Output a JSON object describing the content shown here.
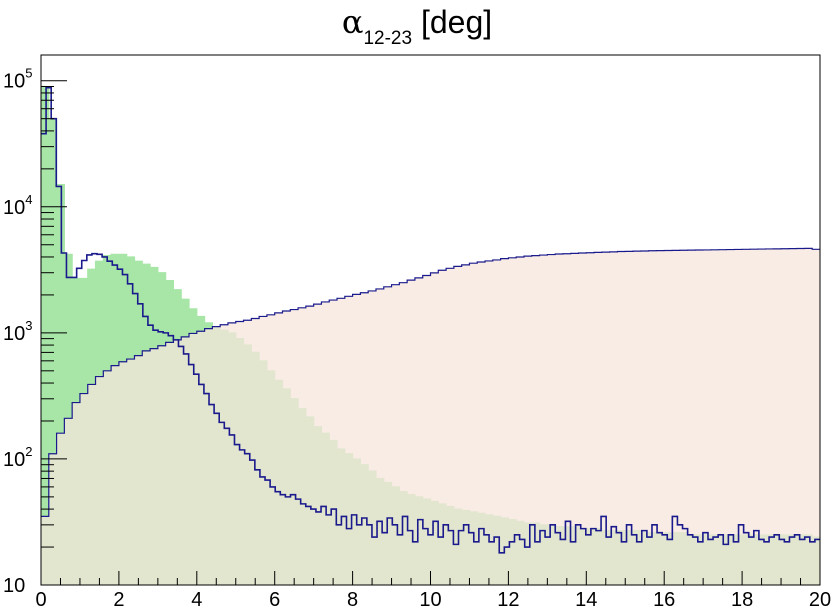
{
  "chart_data": {
    "type": "area",
    "title": {
      "symbol": "α",
      "subscript": "12-23",
      "unit": "[deg]"
    },
    "x_axis": {
      "min": 0,
      "max": 20,
      "tick_labels": [
        "0",
        "2",
        "4",
        "6",
        "8",
        "10",
        "12",
        "14",
        "16",
        "18",
        "20"
      ]
    },
    "y_axis": {
      "scale": "log",
      "min": 10,
      "max": 160000,
      "tick_labels": [
        {
          "value": 10,
          "base": "10",
          "exp": ""
        },
        {
          "value": 100,
          "base": "10",
          "exp": "2"
        },
        {
          "value": 1000,
          "base": "10",
          "exp": "3"
        },
        {
          "value": 10000,
          "base": "10",
          "exp": "4"
        },
        {
          "value": 100000,
          "base": "10",
          "exp": "5"
        }
      ]
    },
    "bin_width": 0.2,
    "grid": false,
    "legend": "none",
    "series": [
      {
        "fill": "#a8e6a8",
        "line": "#a8e6a8",
        "values": [
          90000,
          50000,
          15000,
          4200,
          2700,
          2700,
          3200,
          3700,
          4100,
          4200,
          4200,
          4000,
          3700,
          3500,
          3300,
          3000,
          2600,
          2200,
          1850,
          1550,
          1350,
          1200,
          1100,
          1050,
          1000,
          900,
          800,
          700,
          600,
          500,
          420,
          360,
          300,
          250,
          215,
          180,
          160,
          140,
          120,
          110,
          100,
          90,
          80,
          70,
          65,
          60,
          55,
          52,
          50,
          48,
          46,
          44,
          42,
          40,
          39,
          38,
          37,
          36,
          35,
          34,
          33,
          32,
          31,
          31,
          30,
          30,
          29,
          29,
          29,
          28,
          28,
          28,
          27,
          27,
          27,
          27,
          27,
          26,
          26,
          26,
          26,
          26,
          26,
          25,
          25,
          25,
          25,
          25,
          25,
          25,
          25,
          25,
          25,
          25,
          25,
          25,
          25,
          25,
          25,
          24
        ]
      },
      {
        "fill": "#f5e6dc",
        "line": "#1a1a8c",
        "values": [
          35,
          110,
          160,
          210,
          280,
          330,
          390,
          450,
          500,
          550,
          590,
          620,
          660,
          720,
          750,
          790,
          840,
          880,
          930,
          990,
          1030,
          1080,
          1120,
          1160,
          1200,
          1230,
          1260,
          1300,
          1350,
          1390,
          1440,
          1490,
          1530,
          1580,
          1630,
          1690,
          1760,
          1820,
          1880,
          1950,
          2020,
          2080,
          2150,
          2230,
          2320,
          2410,
          2500,
          2620,
          2730,
          2850,
          2990,
          3140,
          3250,
          3370,
          3460,
          3570,
          3650,
          3720,
          3790,
          3880,
          3940,
          4000,
          4060,
          4100,
          4140,
          4180,
          4220,
          4240,
          4270,
          4300,
          4320,
          4350,
          4370,
          4390,
          4420,
          4430,
          4450,
          4460,
          4480,
          4490,
          4500,
          4510,
          4520,
          4530,
          4540,
          4550,
          4560,
          4570,
          4580,
          4590,
          4600,
          4610,
          4620,
          4630,
          4640,
          4650,
          4660,
          4670,
          4680,
          4600
        ]
      },
      {
        "fill": "none",
        "line": "#1a1a8c",
        "values": [
          38000,
          88000,
          50000,
          14500,
          4300,
          2750,
          2750,
          3250,
          3750,
          4150,
          4250,
          4200,
          4000,
          3700,
          3450,
          3200,
          2900,
          2450,
          2050,
          1700,
          1350,
          1150,
          1050,
          1020,
          1000,
          950,
          880,
          780,
          680,
          560,
          470,
          390,
          330,
          270,
          230,
          195,
          175,
          155,
          130,
          118,
          110,
          98,
          82,
          72,
          68,
          60,
          55,
          52,
          50,
          52,
          48,
          44,
          42,
          40,
          38,
          42,
          36,
          40,
          30,
          35,
          28,
          36,
          30,
          34,
          30,
          24,
          32,
          26,
          34,
          30,
          25,
          35,
          27,
          22,
          33,
          28,
          25,
          32,
          24,
          30,
          27,
          21,
          27,
          30,
          26,
          22,
          28,
          25,
          22,
          24,
          18,
          20,
          22,
          25,
          23,
          20,
          30,
          22,
          27,
          24,
          30,
          26,
          23,
          32,
          22,
          30,
          28,
          25,
          28,
          27,
          35,
          24,
          29,
          26,
          22,
          30,
          25,
          22,
          27,
          24,
          30,
          26,
          25,
          23,
          35,
          30,
          28,
          25,
          24,
          22,
          26,
          23,
          24,
          25,
          21,
          25,
          22,
          30,
          26,
          24,
          27,
          23,
          22,
          24,
          25,
          23,
          22,
          24,
          25,
          23,
          24,
          22,
          23
        ]
      }
    ]
  }
}
